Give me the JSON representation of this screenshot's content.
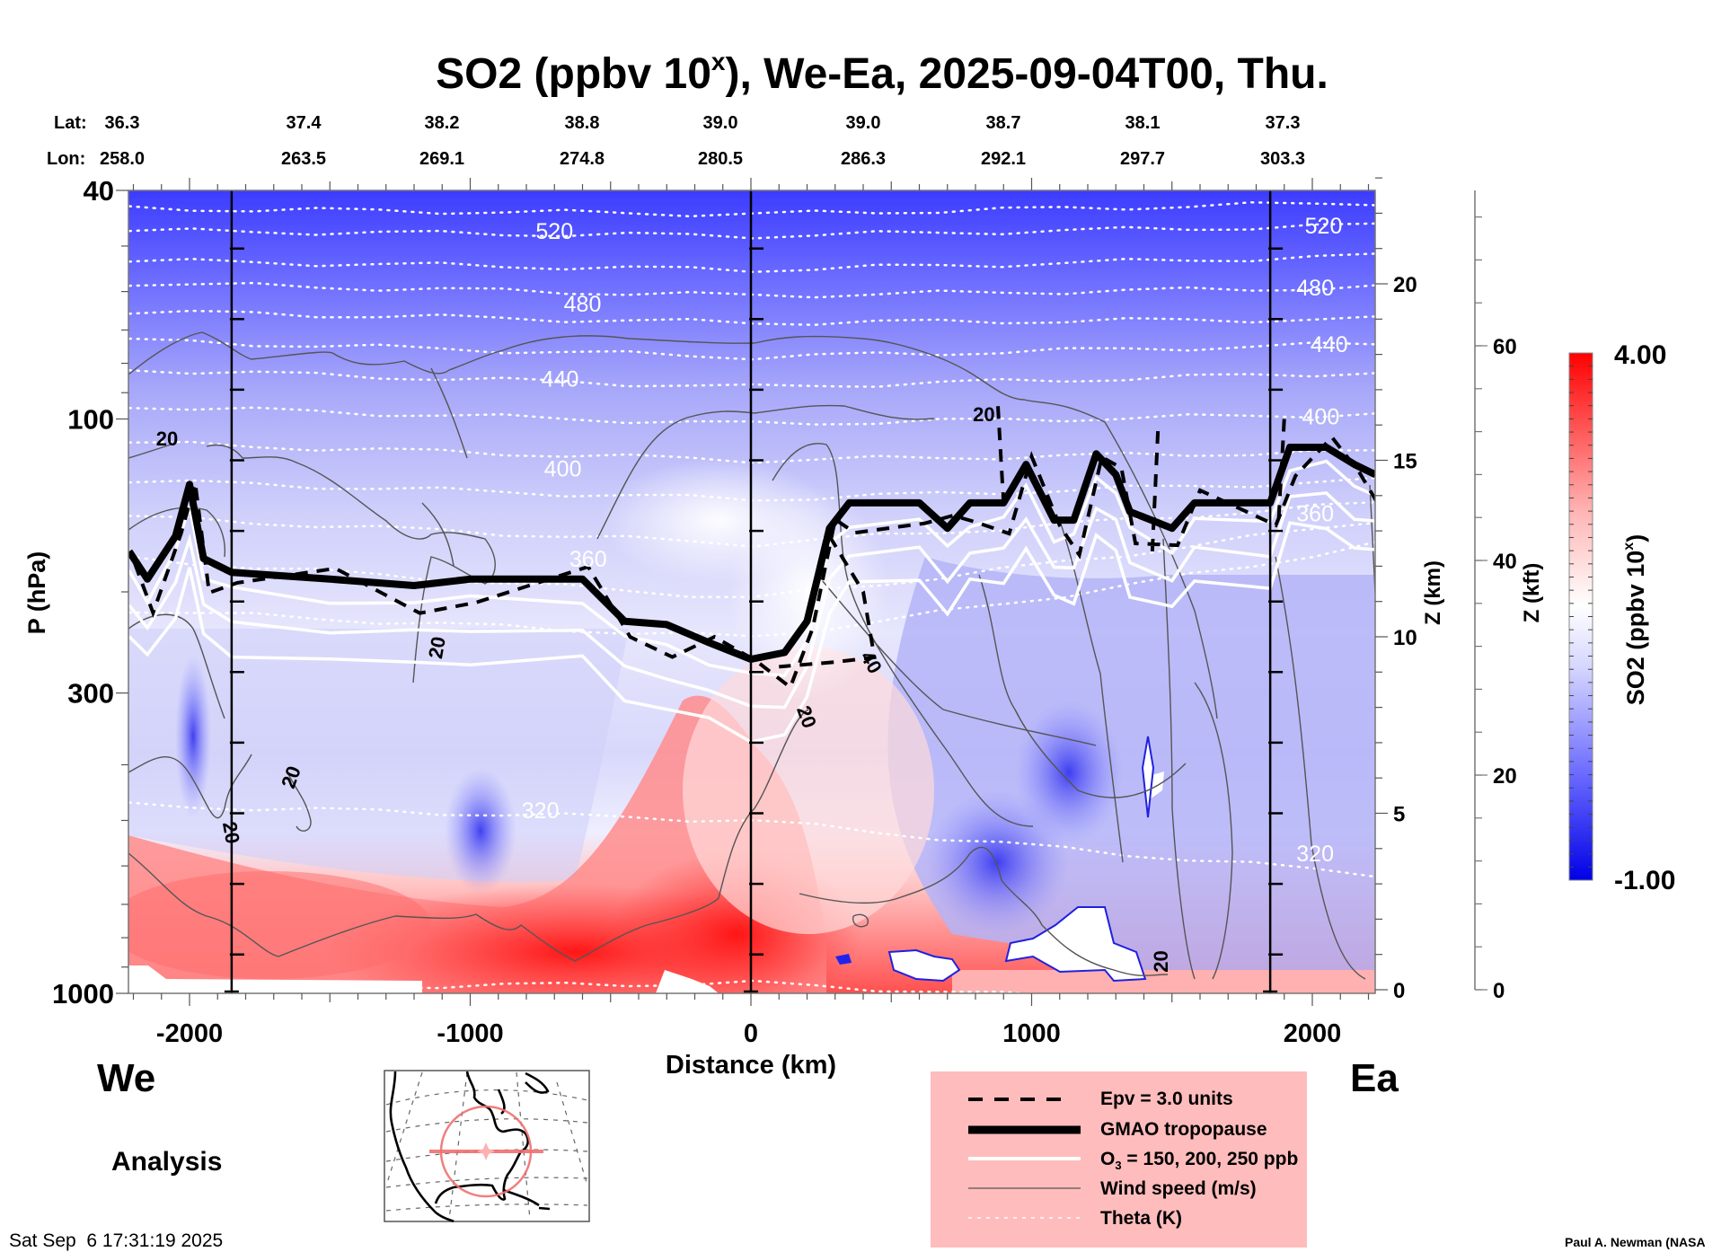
{
  "chart_data": {
    "type": "heatmap",
    "title_main": "SO2 (ppbv 10",
    "title_sup": "x",
    "title_rest": "), We-Ea, 2025-09-04T00, Thu.",
    "title": "SO2 (ppbv 10^x), We-Ea, 2025-09-04T00, Thu.",
    "xlabel": "Distance (km)",
    "ylabel": "P (hPa)",
    "y2label": "Z (km)",
    "y3label": "Z (kft)",
    "xlim": [
      -2215,
      2225
    ],
    "ylim": [
      1000,
      40
    ],
    "yscale": "log",
    "x_ticks": [
      -2000,
      -1000,
      0,
      1000,
      2000
    ],
    "x_tick_labels": [
      "-2000",
      "-1000",
      "0",
      "1000",
      "2000"
    ],
    "y_ticks": [
      40,
      100,
      300,
      1000
    ],
    "y_tick_labels": [
      "40",
      "100",
      "300",
      "1000"
    ],
    "zkm_ticks": [
      0,
      5,
      10,
      15,
      20
    ],
    "zkm_tick_labels": [
      "0",
      "5",
      "10",
      "15",
      "20"
    ],
    "zkft_ticks": [
      0,
      20,
      40,
      60
    ],
    "zkft_tick_labels": [
      "0",
      "20",
      "40",
      "60"
    ],
    "section_markers_km": [
      -1850,
      0,
      1850
    ],
    "lat_label": "Lat:",
    "lon_label": "Lon:",
    "lat": [
      "36.3",
      "37.4",
      "38.2",
      "38.8",
      "39.0",
      "39.0",
      "38.7",
      "38.1",
      "37.3"
    ],
    "lon": [
      "258.0",
      "263.5",
      "269.1",
      "274.8",
      "280.5",
      "286.3",
      "292.1",
      "297.7",
      "303.3"
    ],
    "colorbar": {
      "min": -1.0,
      "max": 4.0,
      "min_label": "-1.00",
      "max_label": "4.00",
      "label_main": "SO2 (ppbv 10",
      "label_sup": "x",
      "label_rest": ")",
      "low_color": "#0000ff",
      "mid_color": "#ffffff",
      "high_color": "#ff0000"
    },
    "theta_contour_labels": [
      {
        "value": "520",
        "x_km": -700,
        "p": 47
      },
      {
        "value": "480",
        "x_km": -600,
        "p": 63
      },
      {
        "value": "440",
        "x_km": -680,
        "p": 85
      },
      {
        "value": "400",
        "x_km": -670,
        "p": 122
      },
      {
        "value": "360",
        "x_km": -580,
        "p": 175
      },
      {
        "value": "320",
        "x_km": -750,
        "p": 480
      },
      {
        "value": "520",
        "x_km": 2040,
        "p": 46
      },
      {
        "value": "480",
        "x_km": 2010,
        "p": 59
      },
      {
        "value": "440",
        "x_km": 2060,
        "p": 74
      },
      {
        "value": "400",
        "x_km": 2030,
        "p": 99
      },
      {
        "value": "360",
        "x_km": 2010,
        "p": 146
      },
      {
        "value": "320",
        "x_km": 2010,
        "p": 570
      }
    ],
    "wind_contour_labels": [
      {
        "value": "20",
        "x_km": -2080,
        "p": 108
      },
      {
        "value": "20",
        "x_km": 830,
        "p": 98
      },
      {
        "value": "20",
        "x_km": -1120,
        "p": 250
      },
      {
        "value": "20",
        "x_km": -1640,
        "p": 420
      },
      {
        "value": "20",
        "x_km": -1850,
        "p": 525
      },
      {
        "value": "40",
        "x_km": 430,
        "p": 265
      },
      {
        "value": "20",
        "x_km": 200,
        "p": 330
      },
      {
        "value": "20",
        "x_km": 1460,
        "p": 880
      }
    ],
    "tropopause_hpa": [
      [
        -2215,
        170
      ],
      [
        -2150,
        190
      ],
      [
        -2050,
        160
      ],
      [
        -2000,
        130
      ],
      [
        -1950,
        175
      ],
      [
        -1850,
        185
      ],
      [
        -1500,
        190
      ],
      [
        -1200,
        195
      ],
      [
        -1000,
        190
      ],
      [
        -600,
        190
      ],
      [
        -450,
        225
      ],
      [
        -300,
        228
      ],
      [
        -150,
        245
      ],
      [
        0,
        262
      ],
      [
        120,
        255
      ],
      [
        200,
        225
      ],
      [
        280,
        155
      ],
      [
        350,
        140
      ],
      [
        600,
        140
      ],
      [
        700,
        155
      ],
      [
        780,
        140
      ],
      [
        900,
        140
      ],
      [
        980,
        120
      ],
      [
        1080,
        150
      ],
      [
        1150,
        150
      ],
      [
        1230,
        115
      ],
      [
        1300,
        125
      ],
      [
        1350,
        145
      ],
      [
        1500,
        155
      ],
      [
        1580,
        140
      ],
      [
        1850,
        140
      ],
      [
        1920,
        112
      ],
      [
        2050,
        112
      ],
      [
        2150,
        120
      ],
      [
        2225,
        125
      ]
    ]
  },
  "we_label": "We",
  "ea_label": "Ea",
  "analysis_label": "Analysis",
  "timestamp": "Sat Sep  6 17:31:19 2025",
  "credit": "Paul A. Newman (NASA",
  "legend": {
    "items": [
      {
        "label": "Epv = 3.0 units",
        "style": "dashed-black"
      },
      {
        "label": "GMAO tropopause",
        "style": "thick-black"
      },
      {
        "label_pre": "O",
        "label_sub": "3",
        "label_post": " = 150, 200, 250 ppb",
        "style": "white"
      },
      {
        "label": "Wind speed (m/s)",
        "style": "thin-gray"
      },
      {
        "label": "Theta (K)",
        "style": "dotted-white"
      }
    ],
    "background": "#ffbcbc"
  },
  "inset_map": {
    "region": "North America",
    "ring_color": "#f07070"
  }
}
